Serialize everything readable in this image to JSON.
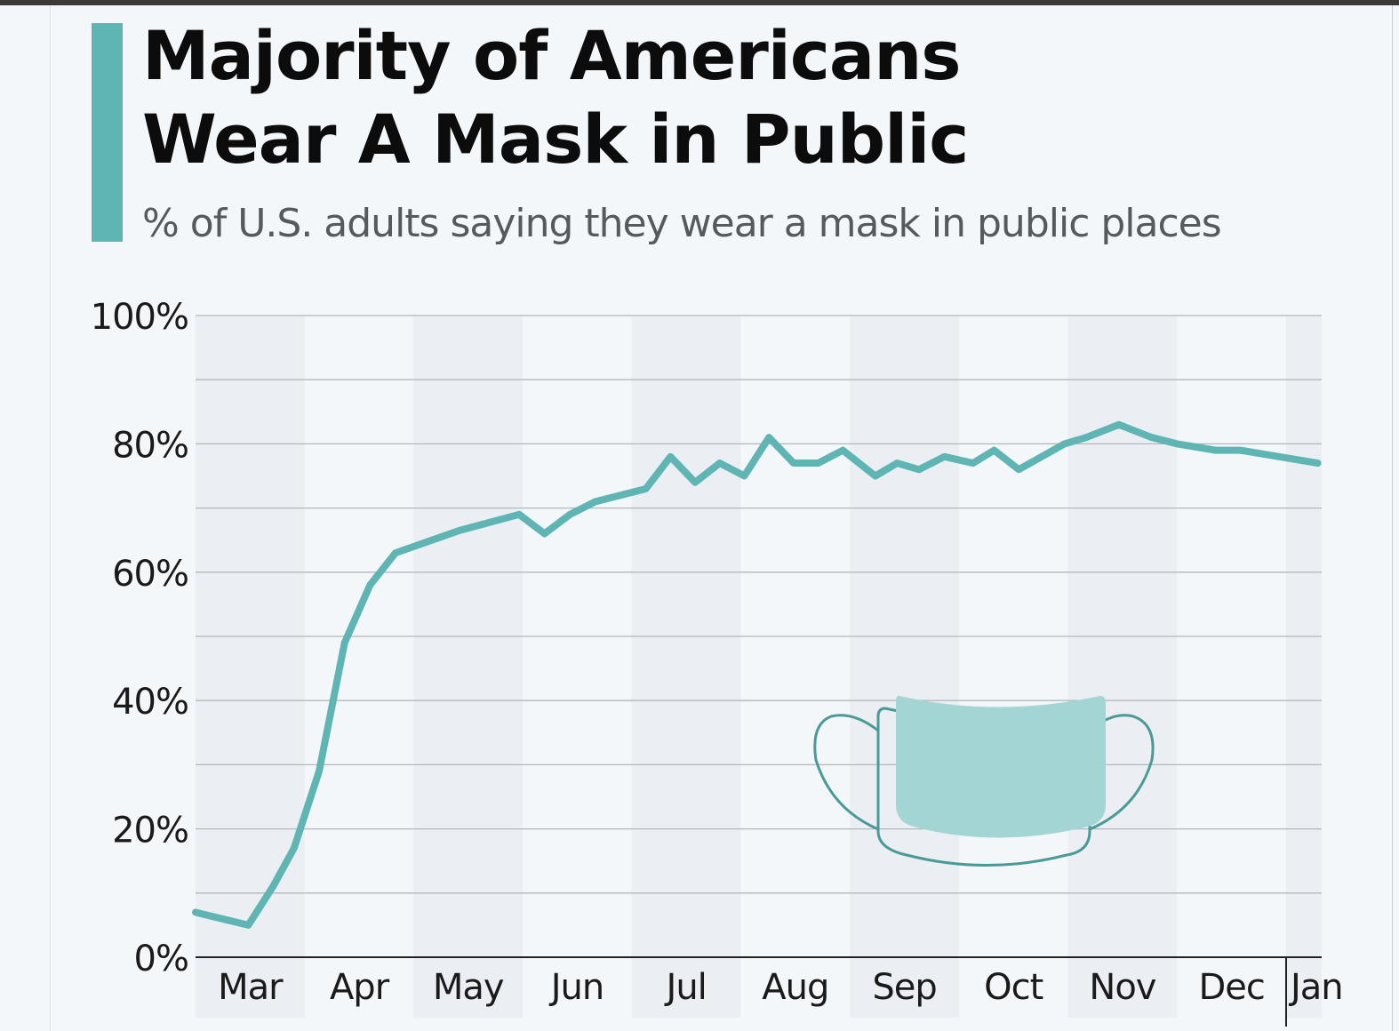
{
  "title_lines": [
    "Majority of Americans",
    "Wear A Mask in Public"
  ],
  "subtitle": "% of U.S. adults saying they wear a mask in public places",
  "colors": {
    "line": "#5fb5b3",
    "accent": "#5fb5b3",
    "band": "#ebeef3",
    "mask_fill": "#a3d5d4",
    "mask_stroke": "#4a9a98"
  },
  "illustration": "face-mask-icon",
  "chart_data": {
    "type": "line",
    "title": "Majority of Americans Wear A Mask in Public",
    "subtitle": "% of U.S. adults saying they wear a mask in public places",
    "xlabel": "",
    "ylabel": "",
    "ylim": [
      0,
      100
    ],
    "yticks": [
      "0%",
      "20%",
      "40%",
      "60%",
      "80%",
      "100%"
    ],
    "xticks": [
      "Mar",
      "Apr",
      "May",
      "Jun",
      "Jul",
      "Aug",
      "Sep",
      "Oct",
      "Nov",
      "Dec",
      "Jan"
    ],
    "grid": true,
    "alternating_month_bands": true,
    "series": [
      {
        "points": [
          [
            "2020-03-01",
            7
          ],
          [
            "2020-03-16",
            5
          ],
          [
            "2020-03-23",
            11
          ],
          [
            "2020-03-29",
            17
          ],
          [
            "2020-04-05",
            29
          ],
          [
            "2020-04-12",
            49
          ],
          [
            "2020-04-19",
            58
          ],
          [
            "2020-04-26",
            63
          ],
          [
            "2020-05-14",
            66.5
          ],
          [
            "2020-05-31",
            69
          ],
          [
            "2020-06-07",
            66
          ],
          [
            "2020-06-14",
            69
          ],
          [
            "2020-06-21",
            71
          ],
          [
            "2020-07-05",
            73
          ],
          [
            "2020-07-12",
            78
          ],
          [
            "2020-07-19",
            74
          ],
          [
            "2020-07-26",
            77
          ],
          [
            "2020-08-02",
            75
          ],
          [
            "2020-08-09",
            81
          ],
          [
            "2020-08-16",
            77
          ],
          [
            "2020-08-23",
            77
          ],
          [
            "2020-08-30",
            79
          ],
          [
            "2020-09-08",
            75
          ],
          [
            "2020-09-14",
            77
          ],
          [
            "2020-09-20",
            76
          ],
          [
            "2020-09-27",
            78
          ],
          [
            "2020-10-05",
            77
          ],
          [
            "2020-10-11",
            79
          ],
          [
            "2020-10-18",
            76
          ],
          [
            "2020-10-31",
            80
          ],
          [
            "2020-11-06",
            81
          ],
          [
            "2020-11-15",
            83
          ],
          [
            "2020-11-24",
            81
          ],
          [
            "2020-12-01",
            80
          ],
          [
            "2020-12-12",
            79
          ],
          [
            "2020-12-19",
            79
          ],
          [
            "2021-01-10",
            77
          ]
        ]
      }
    ]
  }
}
